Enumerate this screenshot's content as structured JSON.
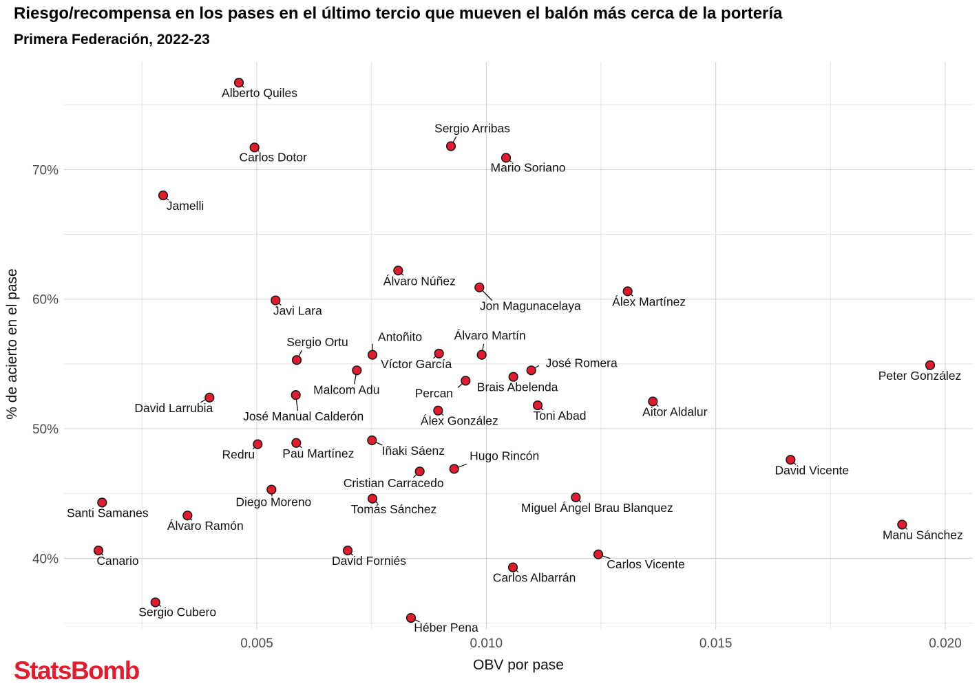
{
  "header": {
    "title": "Riesgo/recompensa en los pases en el último tercio que mueven el balón más cerca de la portería",
    "subtitle": "Primera Federación, 2022-23"
  },
  "brand": {
    "logo_text": "StatsBomb",
    "color": "#e21b2e"
  },
  "chart_data": {
    "type": "scatter",
    "xlabel": "OBV por pase",
    "ylabel": "% de acierto en el pase",
    "xlim": [
      0.0008,
      0.0206
    ],
    "ylim": [
      34.5,
      78.3
    ],
    "x_ticks": [
      {
        "value": 0.005,
        "label": "0.005"
      },
      {
        "value": 0.01,
        "label": "0.010"
      },
      {
        "value": 0.015,
        "label": "0.015"
      },
      {
        "value": 0.02,
        "label": "0.020"
      }
    ],
    "y_ticks": [
      {
        "value": 40,
        "label": "40%"
      },
      {
        "value": 50,
        "label": "50%"
      },
      {
        "value": 60,
        "label": "60%"
      },
      {
        "value": 70,
        "label": "70%"
      }
    ],
    "grid": true,
    "point_color": "#e21b2e",
    "points": [
      {
        "name": "Alberto Quiles",
        "x": 0.00461,
        "y": 76.7
      },
      {
        "name": "Sergio Arribas",
        "x": 0.00923,
        "y": 71.8
      },
      {
        "name": "Carlos Dotor",
        "x": 0.00495,
        "y": 71.7
      },
      {
        "name": "Mario Soriano",
        "x": 0.01043,
        "y": 70.9
      },
      {
        "name": "Jamelli",
        "x": 0.00296,
        "y": 68.0
      },
      {
        "name": "Álvaro Núñez",
        "x": 0.00808,
        "y": 62.2
      },
      {
        "name": "Jon Magunacelaya",
        "x": 0.00985,
        "y": 60.9
      },
      {
        "name": "Álex Martínez",
        "x": 0.01308,
        "y": 60.6
      },
      {
        "name": "Javi Lara",
        "x": 0.00541,
        "y": 59.9
      },
      {
        "name": "Antoñito",
        "x": 0.00752,
        "y": 55.7
      },
      {
        "name": "Álvaro Martín",
        "x": 0.0099,
        "y": 55.7
      },
      {
        "name": "Sergio Ortu",
        "x": 0.00587,
        "y": 55.3
      },
      {
        "name": "Peter González",
        "x": 0.01967,
        "y": 54.9
      },
      {
        "name": "Víctor García",
        "x": 0.00897,
        "y": 55.8
      },
      {
        "name": "José Romera",
        "x": 0.01098,
        "y": 54.5
      },
      {
        "name": "Malcom Adu",
        "x": 0.00718,
        "y": 54.5
      },
      {
        "name": "Brais Abelenda",
        "x": 0.01059,
        "y": 54.0
      },
      {
        "name": "Percan",
        "x": 0.00955,
        "y": 53.7
      },
      {
        "name": "José Manual Calderón",
        "x": 0.00585,
        "y": 52.6
      },
      {
        "name": "David Larrubia",
        "x": 0.00397,
        "y": 52.4
      },
      {
        "name": "Aitor Aldalur",
        "x": 0.01363,
        "y": 52.1
      },
      {
        "name": "Toni Abad",
        "x": 0.01112,
        "y": 51.8
      },
      {
        "name": "Álex González",
        "x": 0.00895,
        "y": 51.4
      },
      {
        "name": "Iñaki Sáenz",
        "x": 0.00751,
        "y": 49.1
      },
      {
        "name": "Pau Martínez",
        "x": 0.00586,
        "y": 48.9
      },
      {
        "name": "Redru",
        "x": 0.00502,
        "y": 48.8
      },
      {
        "name": "David Vicente",
        "x": 0.01663,
        "y": 47.6
      },
      {
        "name": "Hugo Rincón",
        "x": 0.0093,
        "y": 46.9
      },
      {
        "name": "Cristian Carracedo",
        "x": 0.00855,
        "y": 46.7
      },
      {
        "name": "Diego Moreno",
        "x": 0.00532,
        "y": 45.3
      },
      {
        "name": "Miguel Ángel Brau Blanquez",
        "x": 0.01195,
        "y": 44.7
      },
      {
        "name": "Tomás Sánchez",
        "x": 0.00752,
        "y": 44.6
      },
      {
        "name": "Santi Samanes",
        "x": 0.00163,
        "y": 44.3
      },
      {
        "name": "Álvaro Ramón",
        "x": 0.00349,
        "y": 43.3
      },
      {
        "name": "Manu Sánchez",
        "x": 0.01906,
        "y": 42.6
      },
      {
        "name": "Canario",
        "x": 0.00155,
        "y": 40.6
      },
      {
        "name": "David Forniés",
        "x": 0.00698,
        "y": 40.6
      },
      {
        "name": "Carlos Vicente",
        "x": 0.01244,
        "y": 40.3
      },
      {
        "name": "Carlos Albarrán",
        "x": 0.01058,
        "y": 39.3
      },
      {
        "name": "Sergio Cubero",
        "x": 0.00279,
        "y": 36.6
      },
      {
        "name": "Héber Pena",
        "x": 0.00836,
        "y": 35.4
      }
    ]
  }
}
